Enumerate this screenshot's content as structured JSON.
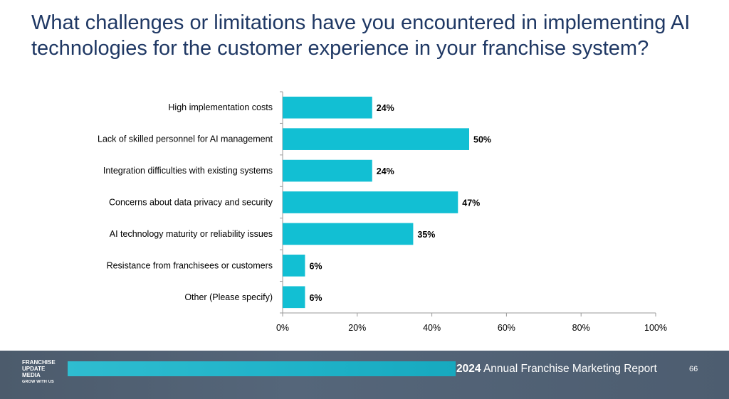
{
  "title": {
    "line1": "What challenges or limitations have you encountered in implementing AI",
    "line2": "technologies for the customer experience in your franchise system?"
  },
  "chart_data": {
    "type": "bar",
    "orientation": "horizontal",
    "categories": [
      "High implementation costs",
      "Lack of skilled personnel for AI management",
      "Integration difficulties with existing systems",
      "Concerns about data privacy and security",
      "AI technology maturity or reliability issues",
      "Resistance from franchisees or customers",
      "Other (Please specify)"
    ],
    "values": [
      24,
      50,
      24,
      47,
      35,
      6,
      6
    ],
    "value_labels": [
      "24%",
      "50%",
      "24%",
      "47%",
      "35%",
      "6%",
      "6%"
    ],
    "xlim": [
      0,
      100
    ],
    "x_ticks": [
      "0%",
      "20%",
      "40%",
      "60%",
      "80%",
      "100%"
    ],
    "grid": false,
    "bar_color": "#12bfd3"
  },
  "footer": {
    "logo_lines": [
      "FRANCHISE",
      "UPDATE",
      "MEDIA"
    ],
    "logo_tagline": "GROW WITH US",
    "report_year": "2024",
    "report_title": "Annual Franchise Marketing Report",
    "page_number": "66"
  }
}
